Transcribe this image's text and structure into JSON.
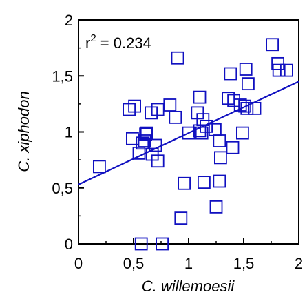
{
  "chart_data": {
    "type": "scatter",
    "xlabel": "C. willemoesii",
    "ylabel": "C. xiphodon",
    "xlim": [
      0,
      2
    ],
    "ylim": [
      0,
      2
    ],
    "x_ticks": [
      "0",
      "0,5",
      "1",
      "1,5",
      "2"
    ],
    "y_ticks": [
      "0",
      "0,5",
      "1",
      "1,5",
      "2"
    ],
    "grid": false,
    "annotation": {
      "prefix": "r",
      "sup": "2",
      "suffix": " = 0.234"
    },
    "regression": {
      "intercept": 0.53,
      "slope": 0.46
    },
    "colors": {
      "marker": "#1010c0",
      "line": "#1010c0",
      "axis": "#000000"
    },
    "points": [
      [
        0.19,
        0.69
      ],
      [
        0.46,
        1.2
      ],
      [
        0.51,
        1.23
      ],
      [
        0.49,
        0.94
      ],
      [
        0.55,
        0.81
      ],
      [
        0.58,
        0.9
      ],
      [
        0.6,
        0.92
      ],
      [
        0.61,
        0.98
      ],
      [
        0.62,
        0.99
      ],
      [
        0.66,
        1.17
      ],
      [
        0.67,
        0.8
      ],
      [
        0.7,
        0.88
      ],
      [
        0.72,
        0.74
      ],
      [
        0.72,
        1.2
      ],
      [
        0.83,
        1.24
      ],
      [
        0.88,
        1.13
      ],
      [
        0.9,
        1.66
      ],
      [
        0.93,
        0.23
      ],
      [
        0.96,
        0.54
      ],
      [
        1.0,
        0.99
      ],
      [
        1.08,
        1.17
      ],
      [
        1.1,
        1.31
      ],
      [
        1.1,
        1.01
      ],
      [
        1.12,
        0.99
      ],
      [
        1.13,
        1.11
      ],
      [
        1.14,
        0.55
      ],
      [
        1.16,
        1.05
      ],
      [
        1.24,
        1.02
      ],
      [
        1.25,
        0.33
      ],
      [
        1.28,
        0.92
      ],
      [
        1.29,
        0.77
      ],
      [
        1.28,
        0.56
      ],
      [
        1.36,
        1.3
      ],
      [
        1.38,
        1.52
      ],
      [
        1.4,
        0.86
      ],
      [
        1.41,
        1.28
      ],
      [
        1.47,
        1.24
      ],
      [
        1.49,
        0.99
      ],
      [
        1.51,
        1.23
      ],
      [
        1.52,
        1.56
      ],
      [
        1.53,
        1.21
      ],
      [
        1.54,
        1.43
      ],
      [
        1.6,
        1.21
      ],
      [
        1.76,
        1.78
      ],
      [
        1.81,
        1.61
      ],
      [
        1.82,
        1.55
      ],
      [
        1.89,
        1.55
      ],
      [
        0.57,
        0.0
      ],
      [
        0.76,
        0.0
      ]
    ]
  }
}
